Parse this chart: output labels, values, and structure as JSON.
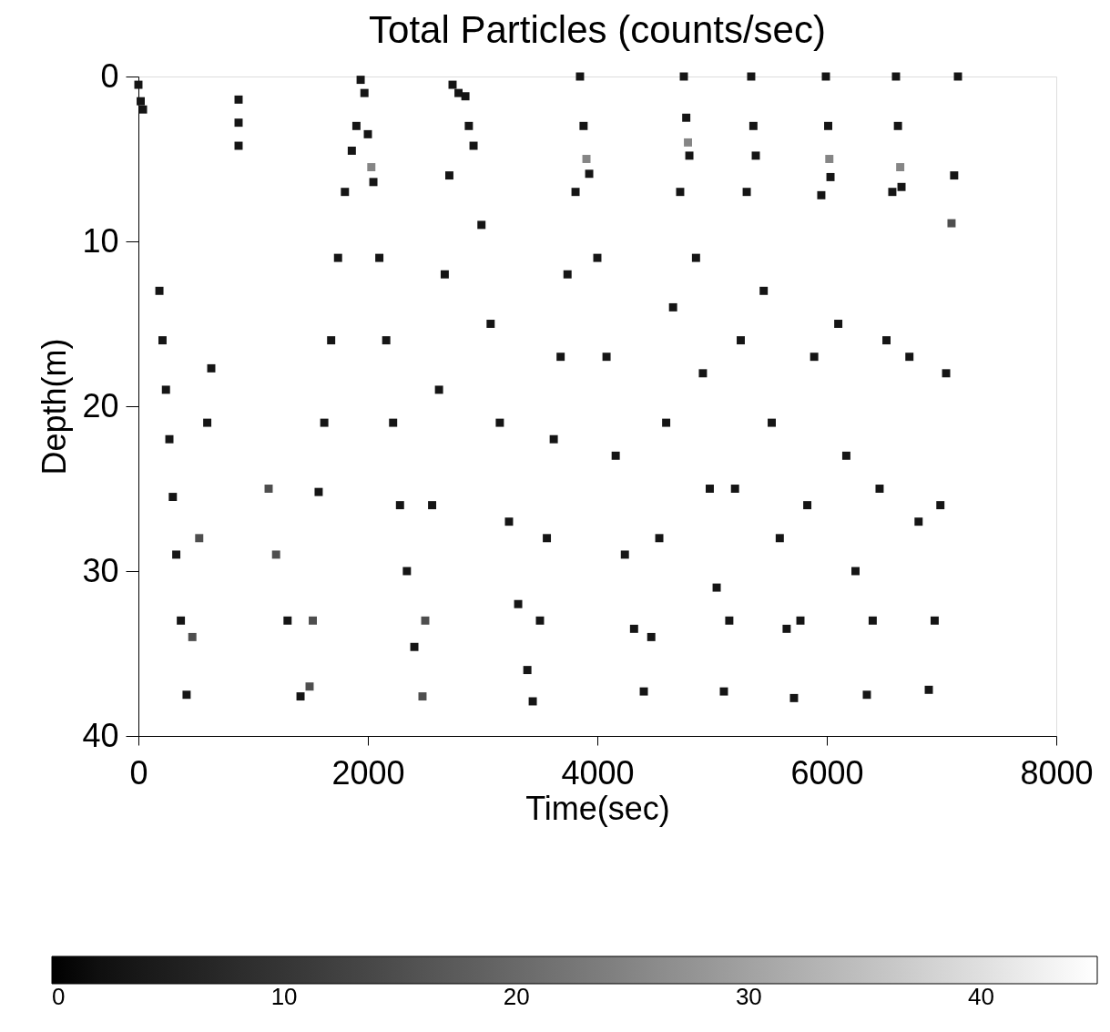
{
  "chart_data": {
    "type": "scatter",
    "title": "Total Particles (counts/sec)",
    "xlabel": "Time(sec)",
    "ylabel": "Depth(m)",
    "xlim": [
      0,
      8000
    ],
    "xticks": [
      0,
      2000,
      4000,
      6000,
      8000
    ],
    "ylim": [
      40,
      0
    ],
    "yticks": [
      0,
      10,
      20,
      30,
      40
    ],
    "clim": [
      0,
      45
    ],
    "cticks": [
      0,
      10,
      20,
      30,
      40
    ],
    "grid": false,
    "marker": "square",
    "x": [
      0,
      20,
      40,
      183,
      210,
      240,
      270,
      300,
      330,
      370,
      420,
      470,
      530,
      600,
      635,
      873,
      873,
      873,
      1135,
      1200,
      1300,
      1413,
      1492,
      1520,
      1571,
      1620,
      1680,
      1740,
      1800,
      1860,
      1900,
      1937,
      1970,
      2000,
      2030,
      2048,
      2100,
      2160,
      2220,
      2280,
      2340,
      2405,
      2476,
      2500,
      2560,
      2620,
      2670,
      2710,
      2738,
      2790,
      2850,
      2880,
      2921,
      2990,
      3070,
      3150,
      3230,
      3310,
      3390,
      3437,
      3500,
      3560,
      3620,
      3680,
      3740,
      3810,
      3849,
      3880,
      3905,
      3929,
      4000,
      4080,
      4160,
      4240,
      4320,
      4405,
      4470,
      4540,
      4600,
      4660,
      4722,
      4754,
      4775,
      4790,
      4802,
      4860,
      4920,
      4980,
      5040,
      5103,
      5150,
      5200,
      5250,
      5302,
      5341,
      5360,
      5381,
      5450,
      5520,
      5590,
      5650,
      5714,
      5770,
      5830,
      5890,
      5952,
      5992,
      6012,
      6022,
      6032,
      6100,
      6170,
      6250,
      6349,
      6400,
      6460,
      6520,
      6571,
      6603,
      6620,
      6640,
      6651,
      6720,
      6800,
      6889,
      6940,
      6990,
      7040,
      7087,
      7110,
      7143
    ],
    "values": [
      0.5,
      1.5,
      2,
      13,
      16,
      19,
      22,
      25.5,
      29,
      33,
      37.5,
      34,
      28,
      21,
      17.7,
      1.4,
      2.8,
      4.2,
      25,
      29,
      33,
      37.6,
      37,
      33,
      25.2,
      21,
      16,
      11,
      7,
      4.5,
      3,
      0.2,
      1,
      3.5,
      5.5,
      6.4,
      11,
      16,
      21,
      26,
      30,
      34.6,
      37.6,
      33,
      26,
      19,
      12,
      6,
      0.5,
      1,
      1.2,
      3,
      4.2,
      9,
      15,
      21,
      27,
      32,
      36,
      37.9,
      33,
      28,
      22,
      17,
      12,
      7,
      0,
      3,
      5,
      5.9,
      11,
      17,
      23,
      29,
      33.5,
      37.3,
      34,
      28,
      21,
      14,
      7,
      0,
      2.5,
      4,
      4.8,
      11,
      18,
      25,
      31,
      37.3,
      33,
      25,
      16,
      7,
      0,
      3,
      4.8,
      13,
      21,
      28,
      33.5,
      37.7,
      33,
      26,
      17,
      7.2,
      0,
      3,
      5,
      6.1,
      15,
      23,
      30,
      37.5,
      33,
      25,
      16,
      7,
      0,
      3,
      5.5,
      6.7,
      17,
      27,
      37.2,
      33,
      26,
      18,
      8.9,
      6,
      0
    ],
    "cvalues": [
      3,
      3,
      3,
      3,
      3,
      3,
      3,
      3,
      3,
      3,
      3,
      15,
      15,
      3,
      3,
      3,
      3,
      3,
      15,
      15,
      3,
      3,
      15,
      15,
      3,
      3,
      3,
      3,
      3,
      3,
      3,
      3,
      3,
      3,
      25,
      3,
      3,
      3,
      3,
      3,
      3,
      3,
      15,
      15,
      3,
      3,
      3,
      3,
      3,
      3,
      3,
      3,
      3,
      3,
      3,
      3,
      3,
      3,
      3,
      3,
      3,
      3,
      3,
      3,
      3,
      3,
      3,
      3,
      25,
      3,
      3,
      3,
      3,
      3,
      3,
      3,
      3,
      3,
      3,
      3,
      3,
      3,
      3,
      25,
      3,
      3,
      3,
      3,
      3,
      3,
      3,
      3,
      3,
      3,
      3,
      3,
      3,
      3,
      3,
      3,
      3,
      3,
      3,
      3,
      3,
      3,
      3,
      3,
      25,
      3,
      3,
      3,
      3,
      3,
      3,
      3,
      3,
      3,
      3,
      3,
      25,
      3,
      3,
      3,
      3,
      3,
      3,
      3,
      15,
      3,
      3
    ]
  }
}
